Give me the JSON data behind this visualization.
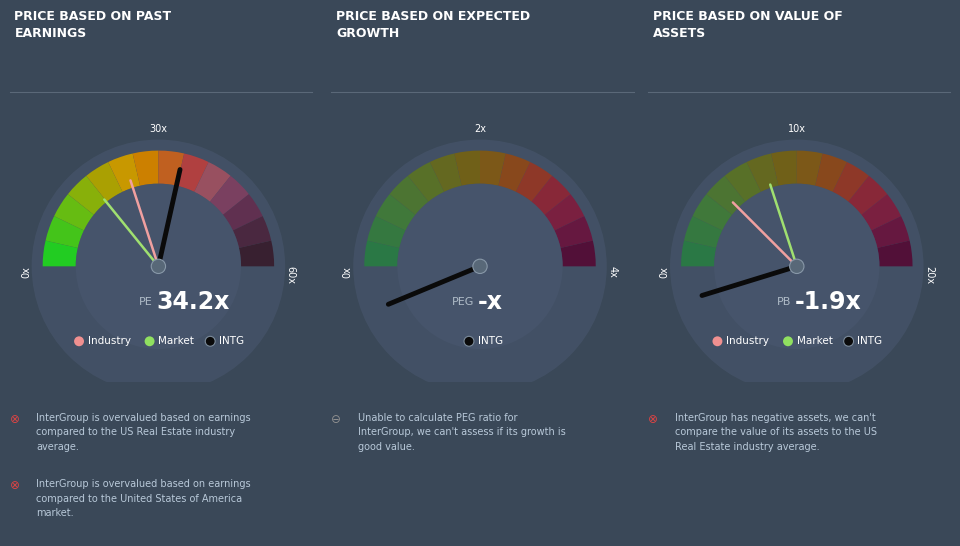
{
  "bg_color": "#3a4858",
  "titles": [
    "PRICE BASED ON PAST\nEARNINGS",
    "PRICE BASED ON EXPECTED\nGROWTH",
    "PRICE BASED ON VALUE OF\nASSETS"
  ],
  "gauges": [
    {
      "min_val": 0,
      "max_val": 60,
      "tick_labels": [
        "0x",
        "30x",
        "60x"
      ],
      "tick_values": [
        0,
        30,
        60
      ],
      "segment_colors": [
        "#22cc22",
        "#44c41a",
        "#66bc12",
        "#88b00a",
        "#aaa002",
        "#c89800",
        "#cc8000",
        "#c06020",
        "#b04040",
        "#985060",
        "#7a4060",
        "#603050",
        "#4a2840",
        "#382030"
      ],
      "industry_val": 24,
      "market_val": 17,
      "intg_val": 34.2,
      "label": "PE",
      "value_text": "34.2",
      "has_industry": true,
      "has_market": true
    },
    {
      "min_val": 0,
      "max_val": 4,
      "tick_labels": [
        "0x",
        "2x",
        "4x"
      ],
      "tick_values": [
        0,
        2,
        4
      ],
      "segment_colors": [
        "#2a7845",
        "#357840",
        "#40783a",
        "#4c7432",
        "#587028",
        "#646820",
        "#706018",
        "#7c5818",
        "#88481c",
        "#8e3828",
        "#882838",
        "#7a2040",
        "#661840",
        "#521038"
      ],
      "industry_val": null,
      "market_val": null,
      "intg_val": -0.5,
      "label": "PEG",
      "value_text": "-",
      "has_industry": false,
      "has_market": false
    },
    {
      "min_val": 0,
      "max_val": 20,
      "tick_labels": [
        "0x",
        "10x",
        "20x"
      ],
      "tick_values": [
        0,
        10,
        20
      ],
      "segment_colors": [
        "#2a7845",
        "#357840",
        "#40783a",
        "#4c7432",
        "#587028",
        "#646820",
        "#706018",
        "#7c5818",
        "#88481c",
        "#8e3828",
        "#882838",
        "#7a2040",
        "#661840",
        "#521038"
      ],
      "industry_val": 5,
      "market_val": 8,
      "intg_val": -1.9,
      "label": "PB",
      "value_text": "-1.9",
      "has_industry": true,
      "has_market": true
    }
  ],
  "footer": [
    [
      [
        "⊗",
        "InterGroup is overvalued based on earnings\ncompared to the US Real Estate industry\naverage."
      ],
      [
        "⊗",
        "InterGroup is overvalued based on earnings\ncompared to the United States of America\nmarket."
      ]
    ],
    [
      [
        "⊖",
        "Unable to calculate PEG ratio for\nInterGroup, we can't assess if its growth is\ngood value."
      ]
    ],
    [
      [
        "⊗",
        "InterGroup has negative assets, we can't\ncompare the value of its assets to the US\nReal Estate industry average."
      ]
    ]
  ],
  "industry_color": "#f09090",
  "market_color": "#90e060",
  "intg_color": "#111111",
  "needle_industry_color": "#f0a0a0",
  "needle_market_color": "#a0e070",
  "circle_bg": "#4a5870"
}
